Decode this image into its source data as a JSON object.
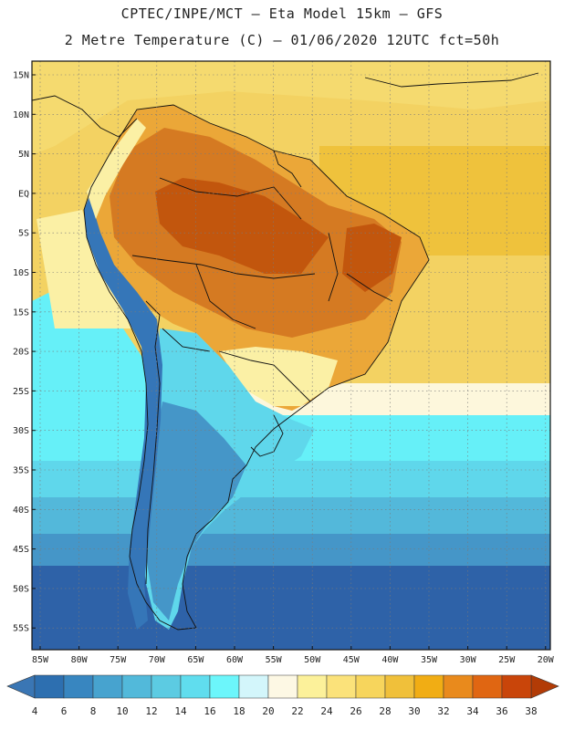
{
  "header": {
    "title_line1": "CPTEC/INPE/MCT –  Eta Model 15km – GFS",
    "title_line2": "2 Metre Temperature (C) – 01/06/2020 12UTC fct=50h"
  },
  "map": {
    "lat_labels": [
      "15N",
      "10N",
      "5N",
      "EQ",
      "5S",
      "10S",
      "15S",
      "20S",
      "25S",
      "30S",
      "35S",
      "40S",
      "45S",
      "50S",
      "55S"
    ],
    "lon_labels": [
      "85W",
      "80W",
      "75W",
      "70W",
      "65W",
      "60W",
      "55W",
      "50W",
      "45W",
      "40W",
      "35W",
      "30W",
      "25W",
      "20W"
    ],
    "gridlines": "dotted"
  },
  "colorbar": {
    "labels": [
      "4",
      "6",
      "8",
      "10",
      "12",
      "14",
      "16",
      "18",
      "20",
      "22",
      "24",
      "26",
      "28",
      "30",
      "32",
      "34",
      "36",
      "38"
    ],
    "colors": [
      "#2d6fb0",
      "#3886c0",
      "#47a3cf",
      "#52b9da",
      "#5ccbe2",
      "#60ddee",
      "#6cf6fb",
      "#d3f6fb",
      "#fdf8e4",
      "#fcf19a",
      "#fbe27a",
      "#f7d55c",
      "#f0c03a",
      "#f1ad14",
      "#e98a1c",
      "#e06612",
      "#c9450a"
    ],
    "under_color": "#3a76b4",
    "over_color": "#b23b06"
  },
  "regions": {
    "colors": {
      "ocean_north": "#f3d262",
      "ocean_hot": "#efc23c",
      "caribbean": "#f5da6f",
      "land_hot": "#d57a22",
      "land_hotter": "#c2560d",
      "land_mid": "#eba738",
      "transition": "#fbf0a5",
      "pale_band": "#fdf7dc",
      "cyan_light": "#66f0f8",
      "cyan": "#5fd7eb",
      "sky": "#53b8da",
      "mid_blue": "#4596c8",
      "dark_blue": "#2e62a8",
      "andes": "#3576b8",
      "borders": "#111111"
    }
  }
}
